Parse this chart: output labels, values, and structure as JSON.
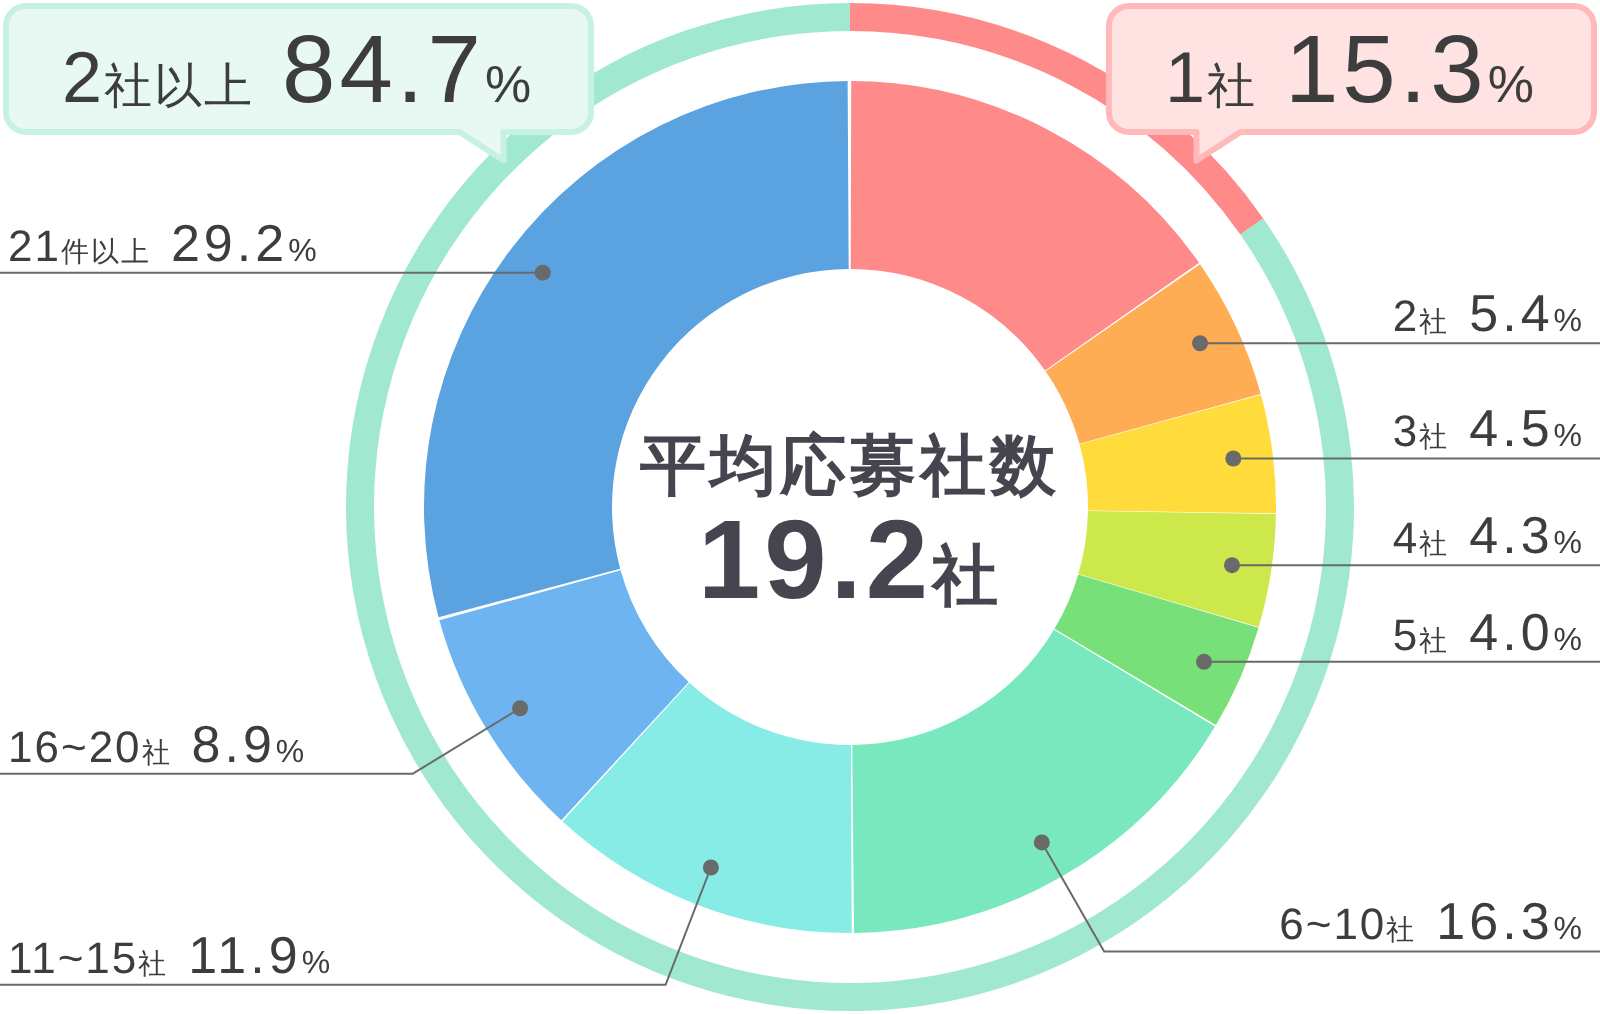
{
  "chart_data": [
    {
      "type": "donut",
      "categories": [
        "1社",
        "2社以上"
      ],
      "values": [
        15.3,
        84.7
      ],
      "colors": [
        "#ff8a8a",
        "#a0e8d0"
      ],
      "value_labels": [
        "15.3%",
        "84.7%"
      ]
    },
    {
      "type": "donut",
      "categories": [
        null,
        "2社",
        "3社",
        "4社",
        "5社",
        "6~10社",
        "11~15社",
        "16~20社",
        "21件以上"
      ],
      "values": [
        15.3,
        5.4,
        4.5,
        4.3,
        4.0,
        16.3,
        11.9,
        8.9,
        29.2
      ],
      "colors": [
        "#ff8a8a",
        "#ffad55",
        "#ffdc3c",
        "#cde84a",
        "#78e078",
        "#7ae8be",
        "#88ece6",
        "#6eb4f0",
        "#5aa2e0"
      ],
      "value_labels": [
        null,
        "5.4%",
        "4.5%",
        "4.3%",
        "4.0%",
        "16.3%",
        "11.9%",
        "8.9%",
        "29.2%"
      ],
      "annotations": [
        "平均応募社数",
        "19.2社"
      ]
    }
  ]
}
